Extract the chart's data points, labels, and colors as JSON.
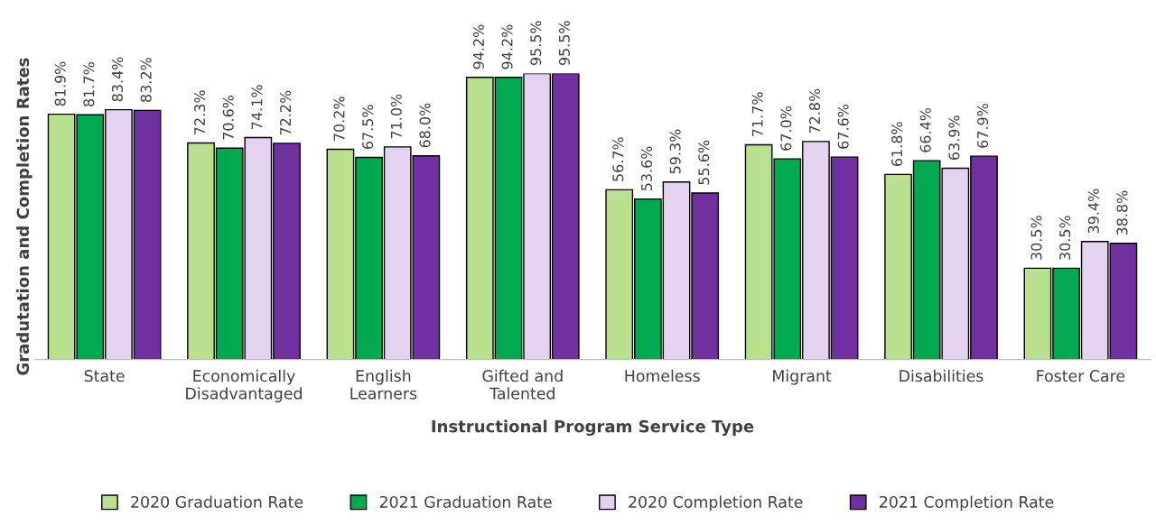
{
  "chart_data": {
    "type": "bar",
    "xlabel": "Instructional Program Service Type",
    "ylabel": "Gradutation and Completion Rates",
    "categories": [
      "State",
      "Economically\nDisadvantaged",
      "English\nLearners",
      "Gifted and\nTalented",
      "Homeless",
      "Migrant",
      "Disabilities",
      "Foster Care"
    ],
    "series": [
      {
        "name": "2020 Graduation Rate",
        "color": "#b8e08e",
        "values": [
          81.9,
          72.3,
          70.2,
          94.2,
          56.7,
          71.7,
          61.8,
          30.5
        ],
        "value_labels": [
          "81.9%",
          "72.3%",
          "70.2%",
          "94.2%",
          "56.7%",
          "71.7%",
          "61.8%",
          "30.5%"
        ]
      },
      {
        "name": "2021 Graduation Rate",
        "color": "#00a84f",
        "values": [
          81.7,
          70.6,
          67.5,
          94.2,
          53.6,
          67.0,
          66.4,
          30.5
        ],
        "value_labels": [
          "81.7%",
          "70.6%",
          "67.5%",
          "94.2%",
          "53.6%",
          "67.0%",
          "66.4%",
          "30.5%"
        ]
      },
      {
        "name": "2020 Completion Rate",
        "color": "#e4d3f0",
        "values": [
          83.4,
          74.1,
          71.0,
          95.5,
          59.3,
          72.8,
          63.9,
          39.4
        ],
        "value_labels": [
          "83.4%",
          "74.1%",
          "71.0%",
          "95.5%",
          "59.3%",
          "72.8%",
          "63.9%",
          "39.4%"
        ]
      },
      {
        "name": "2021 Completion Rate",
        "color": "#7030a0",
        "values": [
          83.2,
          72.2,
          68.0,
          95.5,
          55.6,
          67.6,
          67.9,
          38.8
        ],
        "value_labels": [
          "83.2%",
          "72.2%",
          "68.0%",
          "95.5%",
          "55.6%",
          "67.6%",
          "67.9%",
          "38.8%"
        ]
      }
    ],
    "legend": "bottom",
    "grid": false
  }
}
